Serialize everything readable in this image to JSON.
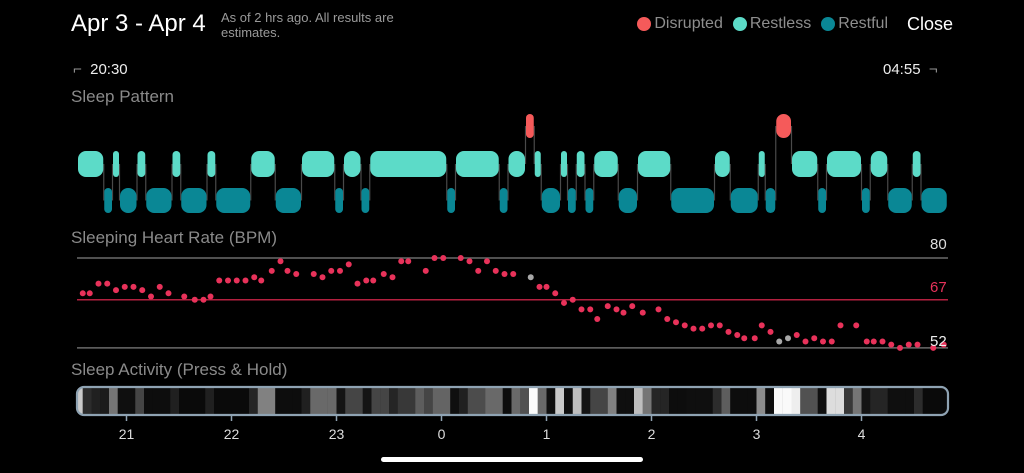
{
  "header": {
    "title": "Apr 3 - Apr 4",
    "subtitle": "As of 2 hrs ago. All results are estimates.",
    "close_label": "Close"
  },
  "legend": [
    {
      "label": "Disrupted",
      "color": "#f55a5a"
    },
    {
      "label": "Restless",
      "color": "#5cdbc8"
    },
    {
      "label": "Restful",
      "color": "#0a8795"
    }
  ],
  "range": {
    "start": "20:30",
    "end": "04:55",
    "start_bracket": "⌐",
    "end_bracket": "¬"
  },
  "sleep_pattern": {
    "title": "Sleep Pattern",
    "note": "segments as [stage, start_min, end_min] minutes after 20:30",
    "segments": [
      [
        "restless",
        2,
        17
      ],
      [
        "restful",
        17,
        22
      ],
      [
        "restless",
        22,
        26
      ],
      [
        "restful",
        26,
        36
      ],
      [
        "restless",
        36,
        41
      ],
      [
        "restful",
        41,
        56
      ],
      [
        "restless",
        56,
        61
      ],
      [
        "restful",
        61,
        76
      ],
      [
        "restless",
        76,
        81
      ],
      [
        "restful",
        81,
        101
      ],
      [
        "restless",
        101,
        115
      ],
      [
        "restful",
        115,
        130
      ],
      [
        "restless",
        130,
        149
      ],
      [
        "restful",
        149,
        154
      ],
      [
        "restless",
        154,
        164
      ],
      [
        "restful",
        164,
        169
      ],
      [
        "restless",
        169,
        213
      ],
      [
        "restful",
        213,
        218
      ],
      [
        "restless",
        218,
        243
      ],
      [
        "restful",
        243,
        248
      ],
      [
        "restless",
        248,
        258
      ],
      [
        "disrupted",
        258,
        263
      ],
      [
        "restless",
        263,
        267
      ],
      [
        "restful",
        267,
        278
      ],
      [
        "restless",
        278,
        282
      ],
      [
        "restful",
        282,
        287
      ],
      [
        "restless",
        287,
        292
      ],
      [
        "restful",
        292,
        297
      ],
      [
        "restless",
        297,
        311
      ],
      [
        "restful",
        311,
        322
      ],
      [
        "restless",
        322,
        341
      ],
      [
        "restful",
        341,
        366
      ],
      [
        "restless",
        366,
        375
      ],
      [
        "restful",
        375,
        391
      ],
      [
        "restless",
        391,
        395
      ],
      [
        "restful",
        395,
        401
      ],
      [
        "disrupted",
        401,
        410
      ],
      [
        "restless",
        410,
        425
      ],
      [
        "restful",
        425,
        430
      ],
      [
        "restless",
        430,
        450
      ],
      [
        "restful",
        450,
        455
      ],
      [
        "restless",
        455,
        465
      ],
      [
        "restful",
        465,
        479
      ],
      [
        "restless",
        479,
        484
      ],
      [
        "restful",
        484,
        499
      ]
    ]
  },
  "heart_rate": {
    "title": "Sleeping Heart Rate (BPM)",
    "max_label": "80",
    "avg_label": "67",
    "min_label": "52",
    "max": 80,
    "avg": 67,
    "min": 52,
    "dot_color": "#e8325a",
    "gap_color": "#a8a8a8",
    "points": [
      [
        5,
        69,
        1
      ],
      [
        9,
        69,
        1
      ],
      [
        14,
        72,
        1
      ],
      [
        19,
        72,
        1
      ],
      [
        24,
        70,
        1
      ],
      [
        29,
        71,
        1
      ],
      [
        34,
        71,
        1
      ],
      [
        39,
        70,
        1
      ],
      [
        44,
        68,
        1
      ],
      [
        49,
        71,
        1
      ],
      [
        54,
        69,
        1
      ],
      [
        63,
        68,
        1
      ],
      [
        69,
        67,
        1
      ],
      [
        74,
        67,
        1
      ],
      [
        78,
        68,
        1
      ],
      [
        83,
        73,
        1
      ],
      [
        88,
        73,
        1
      ],
      [
        93,
        73,
        1
      ],
      [
        98,
        73,
        1
      ],
      [
        103,
        74,
        1
      ],
      [
        107,
        73,
        1
      ],
      [
        113,
        76,
        1
      ],
      [
        118,
        79,
        1
      ],
      [
        122,
        76,
        1
      ],
      [
        127,
        75,
        1
      ],
      [
        137,
        75,
        1
      ],
      [
        142,
        74,
        1
      ],
      [
        147,
        76,
        1
      ],
      [
        152,
        76,
        1
      ],
      [
        157,
        78,
        1
      ],
      [
        162,
        72,
        1
      ],
      [
        167,
        73,
        1
      ],
      [
        171,
        73,
        1
      ],
      [
        177,
        75,
        1
      ],
      [
        182,
        74,
        1
      ],
      [
        187,
        79,
        1
      ],
      [
        191,
        79,
        1
      ],
      [
        201,
        76,
        1
      ],
      [
        206,
        80,
        1
      ],
      [
        211,
        80,
        1
      ],
      [
        221,
        80,
        1
      ],
      [
        226,
        79,
        1
      ],
      [
        231,
        76,
        1
      ],
      [
        236,
        79,
        1
      ],
      [
        241,
        76,
        1
      ],
      [
        246,
        75,
        1
      ],
      [
        251,
        75,
        1
      ],
      [
        261,
        74,
        0
      ],
      [
        266,
        71,
        1
      ],
      [
        270,
        71,
        1
      ],
      [
        275,
        69,
        1
      ],
      [
        280,
        66,
        1
      ],
      [
        285,
        67,
        1
      ],
      [
        290,
        64,
        1
      ],
      [
        295,
        64,
        1
      ],
      [
        299,
        61,
        1
      ],
      [
        305,
        65,
        1
      ],
      [
        310,
        64,
        1
      ],
      [
        314,
        63,
        1
      ],
      [
        319,
        65,
        1
      ],
      [
        325,
        63,
        1
      ],
      [
        334,
        64,
        1
      ],
      [
        339,
        61,
        1
      ],
      [
        344,
        60,
        1
      ],
      [
        349,
        59,
        1
      ],
      [
        354,
        58,
        1
      ],
      [
        359,
        58,
        1
      ],
      [
        364,
        59,
        1
      ],
      [
        369,
        59,
        1
      ],
      [
        374,
        57,
        1
      ],
      [
        379,
        56,
        1
      ],
      [
        383,
        55,
        1
      ],
      [
        389,
        55,
        1
      ],
      [
        393,
        59,
        1
      ],
      [
        398,
        57,
        1
      ],
      [
        403,
        54,
        0
      ],
      [
        408,
        55,
        0
      ],
      [
        413,
        56,
        1
      ],
      [
        418,
        54,
        1
      ],
      [
        423,
        55,
        1
      ],
      [
        428,
        54,
        1
      ],
      [
        433,
        54,
        1
      ],
      [
        438,
        59,
        1
      ],
      [
        447,
        59,
        1
      ],
      [
        453,
        54,
        1
      ],
      [
        457,
        54,
        1
      ],
      [
        462,
        54,
        1
      ],
      [
        467,
        53,
        1
      ],
      [
        472,
        52,
        1
      ],
      [
        477,
        53,
        1
      ],
      [
        482,
        53,
        1
      ],
      [
        491,
        52,
        1
      ],
      [
        497,
        53,
        1
      ]
    ]
  },
  "activity": {
    "title": "Sleep Activity (Press & Hold)",
    "slice_minutes": 5,
    "levels": [
      0.8,
      0.15,
      0.1,
      0.08,
      0.45,
      0.03,
      0.03,
      0.25,
      0.02,
      0.02,
      0.02,
      0.1,
      0.01,
      0.01,
      0.01,
      0.1,
      0.01,
      0.01,
      0.01,
      0.01,
      0.12,
      0.5,
      0.5,
      0.02,
      0.02,
      0.02,
      0.1,
      0.4,
      0.4,
      0.4,
      0.05,
      0.25,
      0.25,
      0.05,
      0.25,
      0.25,
      0.12,
      0.2,
      0.2,
      0.35,
      0.25,
      0.38,
      0.38,
      0.03,
      0.1,
      0.28,
      0.28,
      0.4,
      0.4,
      0.02,
      0.4,
      0.3,
      1.0,
      0.4,
      0.03,
      0.8,
      0.03,
      0.75,
      0.05,
      0.25,
      0.25,
      0.5,
      0.03,
      0.03,
      0.75,
      0.45,
      0.12,
      0.12,
      0.02,
      0.02,
      0.03,
      0.03,
      0.03,
      0.15,
      0.35,
      0.02,
      0.02,
      0.02,
      0.55,
      0.02,
      1.0,
      1.0,
      0.95,
      0.3,
      0.3,
      0.03,
      0.88,
      0.88,
      0.2,
      0.45,
      0.05,
      0.12,
      0.12,
      0.03,
      0.03,
      0.03,
      0.15,
      0.01,
      0.01,
      0.01
    ],
    "hour_ticks": [
      {
        "label": "21",
        "minute": 30
      },
      {
        "label": "22",
        "minute": 90
      },
      {
        "label": "23",
        "minute": 150
      },
      {
        "label": "0",
        "minute": 210
      },
      {
        "label": "1",
        "minute": 270
      },
      {
        "label": "2",
        "minute": 330
      },
      {
        "label": "3",
        "minute": 390
      },
      {
        "label": "4",
        "minute": 450
      }
    ]
  }
}
